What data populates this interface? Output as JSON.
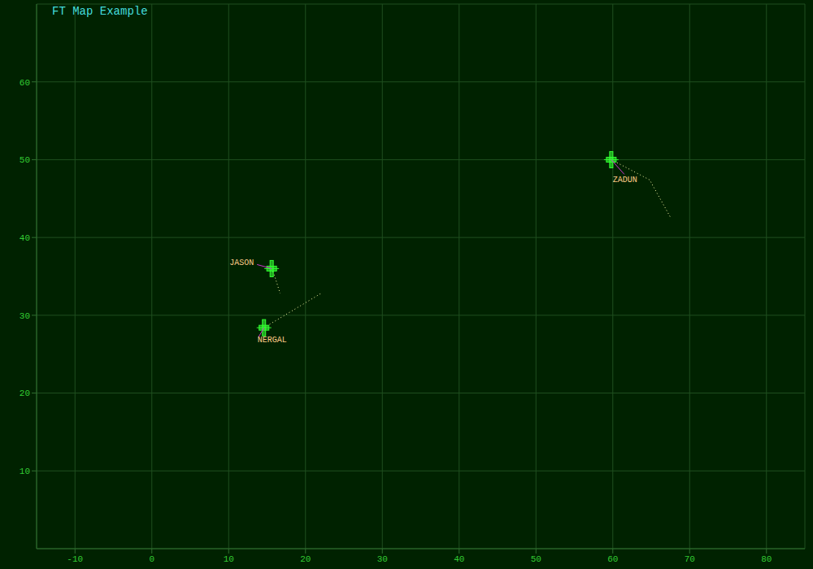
{
  "chart_data": {
    "type": "scatter",
    "title": "FT Map Example",
    "xlim": [
      -15,
      85
    ],
    "ylim": [
      0,
      70
    ],
    "xticks": [
      -10,
      0,
      10,
      20,
      30,
      40,
      50,
      60,
      70,
      80
    ],
    "yticks": [
      10,
      20,
      30,
      40,
      50,
      60
    ],
    "grid": true,
    "line_style": "dotted",
    "marker": "ship",
    "series": [
      {
        "name": "JASON",
        "color": "#33ff33",
        "x": [
          15.6,
          16.0,
          16.7
        ],
        "values": [
          36.0,
          35.0,
          32.8
        ]
      },
      {
        "name": "NERGAL",
        "color": "#33ff33",
        "x": [
          14.6,
          22.0
        ],
        "values": [
          28.4,
          32.8
        ]
      },
      {
        "name": "ZADUN",
        "color": "#33ff33",
        "x": [
          59.8,
          64.8,
          67.5
        ],
        "values": [
          50.0,
          47.4,
          42.6
        ]
      }
    ]
  }
}
